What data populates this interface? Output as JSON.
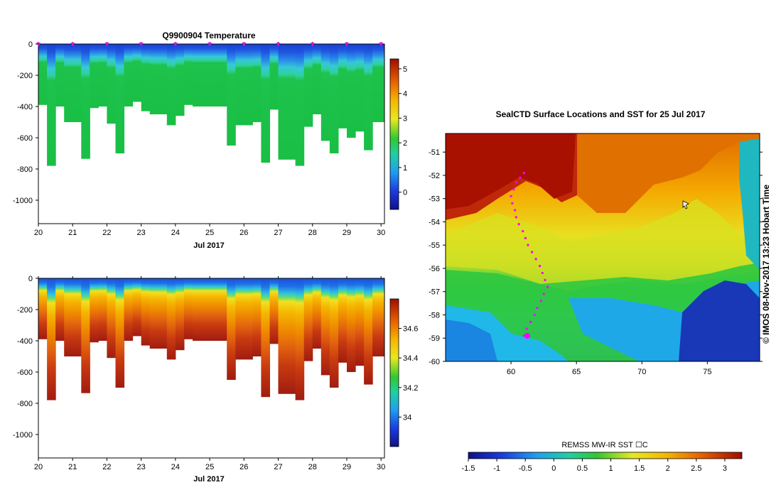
{
  "chart_data": [
    {
      "type": "heatmap",
      "title": "Q9900904  Temperature",
      "xlabel": "Jul 2017",
      "ylabel": "",
      "xlim": [
        20,
        30.1
      ],
      "ylim": [
        -1150,
        0
      ],
      "x_ticks": [
        "20",
        "21",
        "22",
        "23",
        "24",
        "25",
        "26",
        "27",
        "28",
        "29",
        "30"
      ],
      "y_ticks": [
        "0",
        "-200",
        "-400",
        "-600",
        "-800",
        "-1000"
      ],
      "profile_times": [
        20.0,
        20.25,
        20.5,
        20.75,
        21.0,
        21.25,
        21.5,
        21.75,
        22.0,
        22.25,
        22.5,
        22.75,
        23.0,
        23.25,
        23.5,
        23.75,
        24.0,
        24.25,
        24.5,
        24.75,
        25.0,
        25.25,
        25.5,
        25.75,
        26.0,
        26.25,
        26.5,
        26.75,
        27.0,
        27.25,
        27.5,
        27.75,
        28.0,
        28.25,
        28.5,
        28.75,
        29.0,
        29.25,
        29.5,
        29.75,
        30.0
      ],
      "profile_max_depth": [
        -390,
        -780,
        -400,
        -500,
        -500,
        -735,
        -410,
        -400,
        -510,
        -700,
        -400,
        -370,
        -430,
        -450,
        -450,
        -520,
        -460,
        -390,
        -400,
        -400,
        -400,
        -400,
        -650,
        -520,
        -520,
        -500,
        -760,
        -420,
        -740,
        -740,
        -780,
        -530,
        -450,
        -620,
        -700,
        -540,
        -600,
        -560,
        -680,
        -500,
        -500
      ],
      "colorbar": {
        "label": "",
        "ticks": [
          "0",
          "1",
          "2",
          "3",
          "4",
          "5"
        ],
        "range": [
          -0.7,
          5.4
        ]
      },
      "surface_markers": "magenta triangles at each day tick"
    },
    {
      "type": "heatmap",
      "title": "",
      "xlabel": "Jul 2017",
      "ylabel": "",
      "xlim": [
        20,
        30.1
      ],
      "ylim": [
        -1150,
        0
      ],
      "x_ticks": [
        "20",
        "21",
        "22",
        "23",
        "24",
        "25",
        "26",
        "27",
        "28",
        "29",
        "30"
      ],
      "y_ticks": [
        "0",
        "-200",
        "-400",
        "-600",
        "-800",
        "-1000"
      ],
      "colorbar": {
        "label": "",
        "ticks": [
          "34",
          "34.2",
          "34.4",
          "34.6"
        ],
        "range": [
          33.8,
          34.8
        ]
      }
    },
    {
      "type": "heatmap",
      "title": "SealCTD Surface Locations and SST for 25 Jul 2017",
      "xlabel": "",
      "ylabel": "",
      "xlim": [
        55,
        79
      ],
      "ylim": [
        -60,
        -50.2
      ],
      "x_ticks": [
        "60",
        "65",
        "70",
        "75"
      ],
      "y_ticks": [
        "-51",
        "-52",
        "-53",
        "-54",
        "-55",
        "-56",
        "-57",
        "-58",
        "-59",
        "-60"
      ],
      "colorbar": {
        "label": "REMSS MW-IR SST ☐C",
        "ticks": [
          "-1.5",
          "-1",
          "-0.5",
          "0",
          "0.5",
          "1",
          "1.5",
          "2",
          "2.5",
          "3"
        ],
        "range": [
          -1.5,
          3.3
        ]
      },
      "track_color": "#ff00ff",
      "credit": "©  IMOS 08-Nov-2017 13:23 Hobart Time"
    }
  ],
  "colors": {
    "track": "#ff00ff",
    "background": "#ffffff"
  }
}
